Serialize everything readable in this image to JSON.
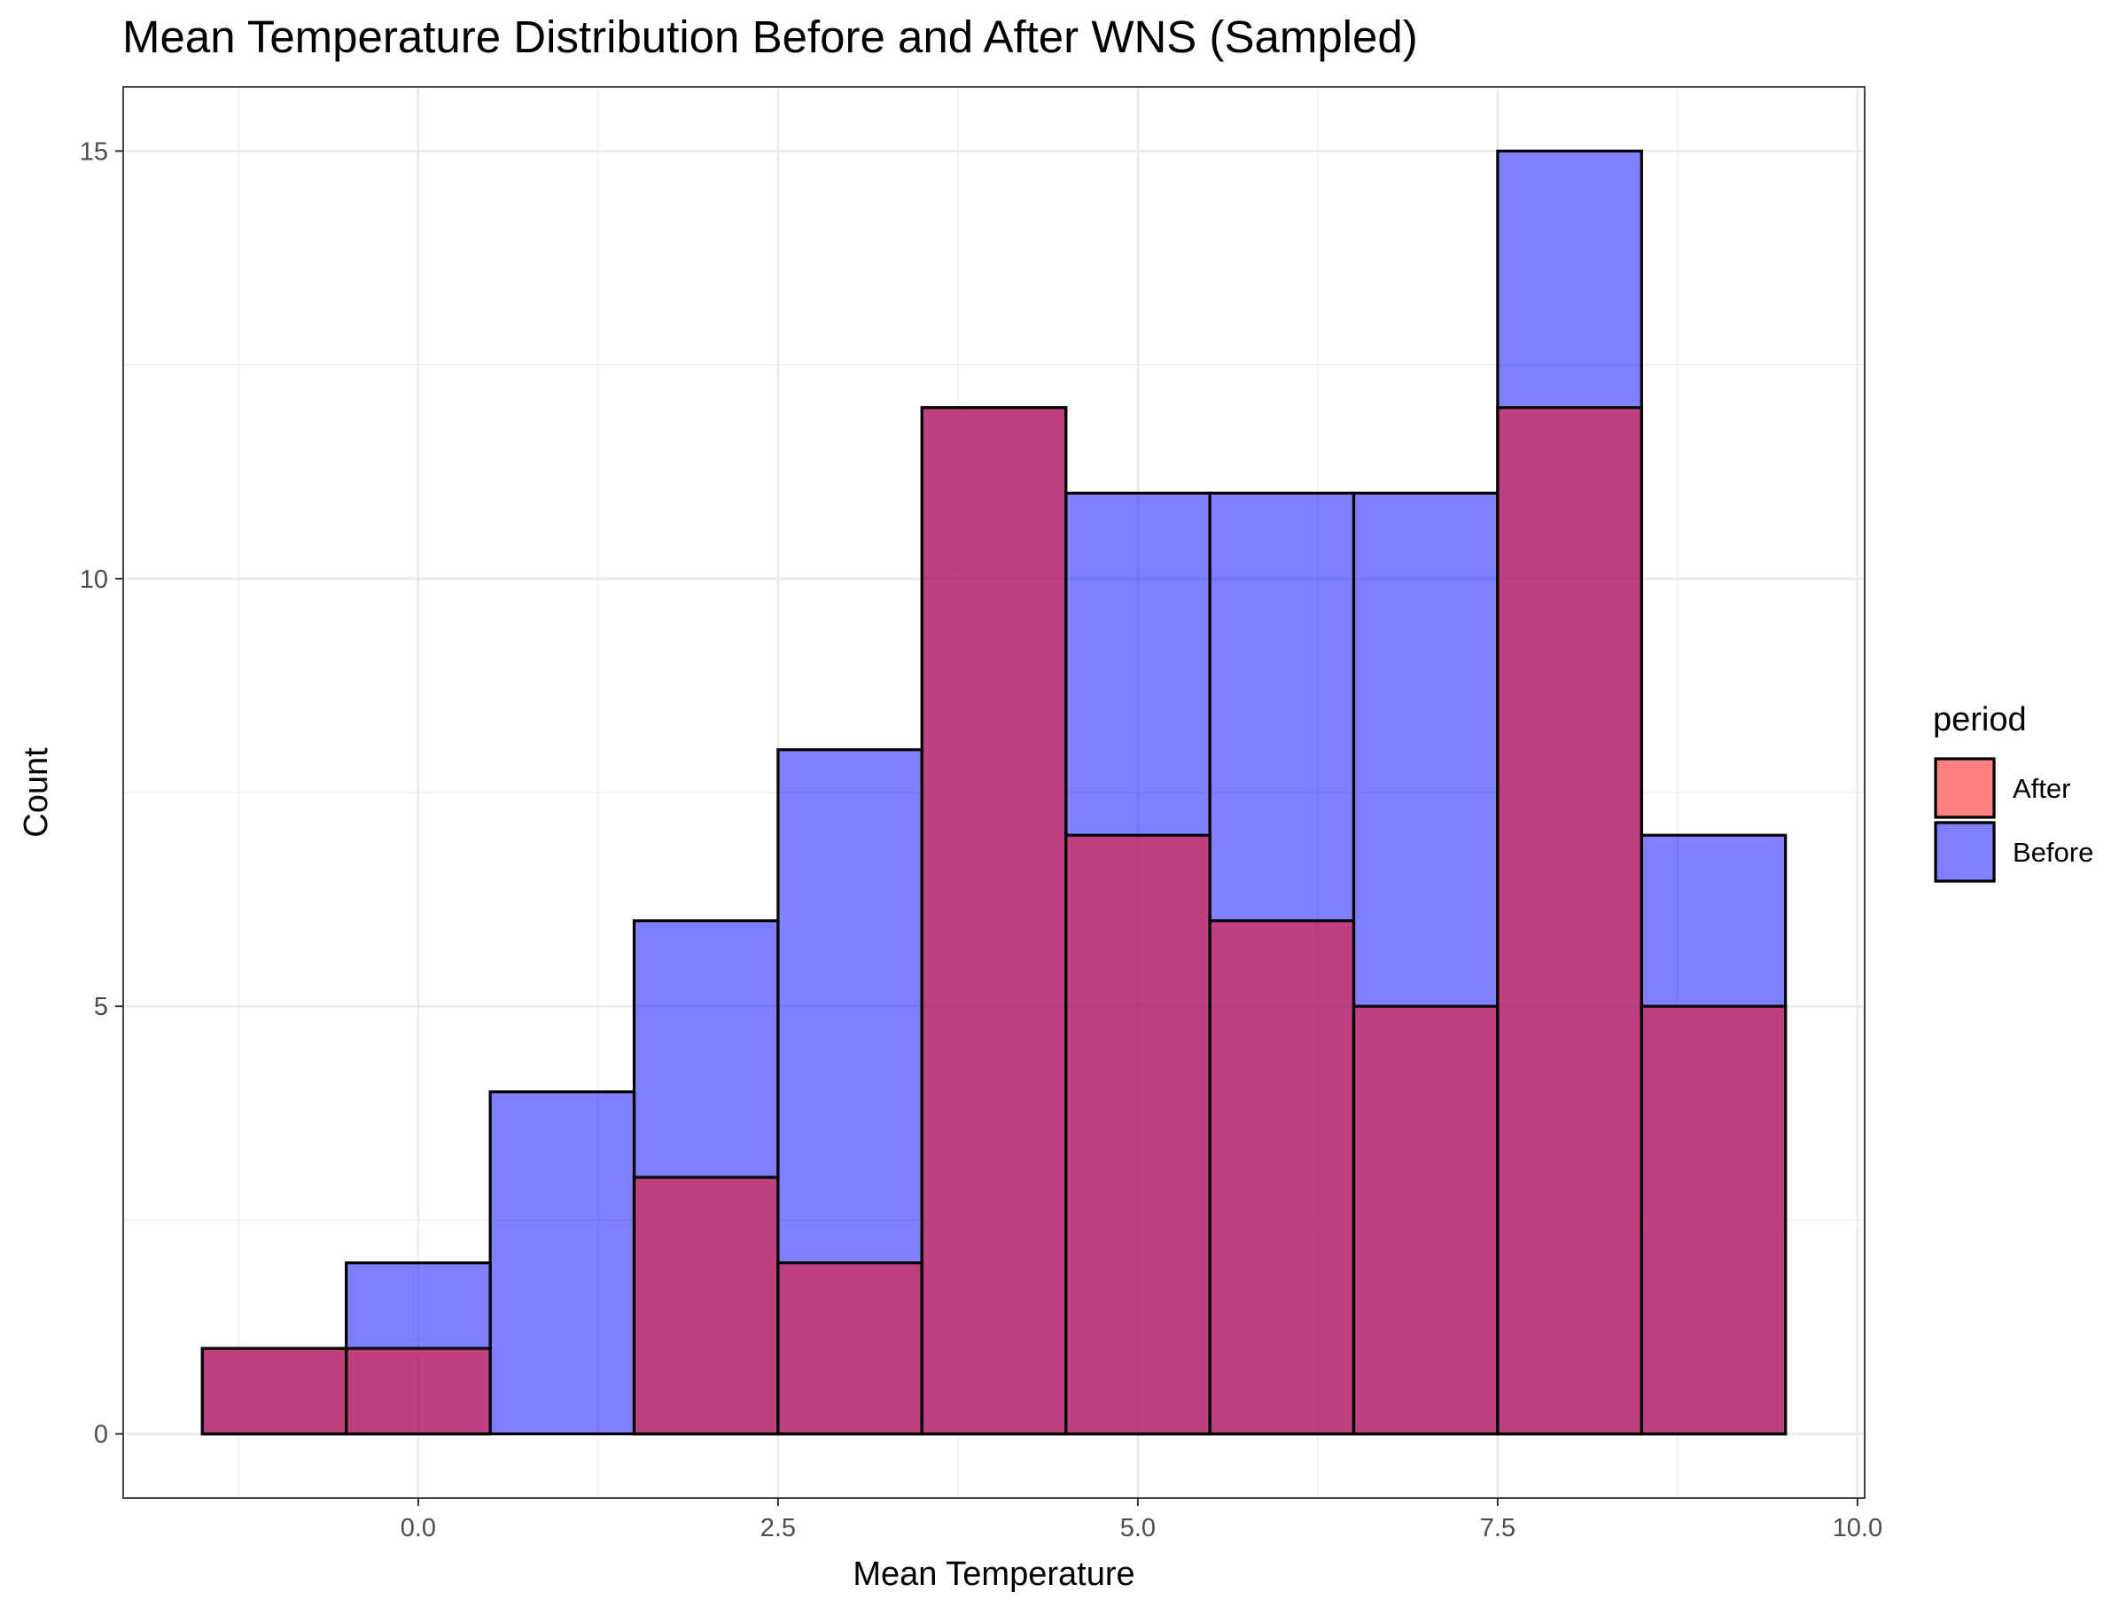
{
  "chart_data": {
    "type": "bar",
    "chart_kind": "histogram-overlay",
    "title": "Mean Temperature Distribution Before and After WNS (Sampled)",
    "xlabel": "Mean Temperature",
    "ylabel": "Count",
    "xlim": [
      -2.05,
      10.05
    ],
    "ylim": [
      -0.75,
      15.75
    ],
    "x_ticks": [
      0.0,
      2.5,
      5.0,
      7.5,
      10.0
    ],
    "x_tick_labels": [
      "0.0",
      "2.5",
      "5.0",
      "7.5",
      "10.0"
    ],
    "y_ticks": [
      0,
      5,
      10,
      15
    ],
    "y_tick_labels": [
      "0",
      "5",
      "10",
      "15"
    ],
    "grid": true,
    "bin_width": 1,
    "bin_centers": [
      -1,
      0,
      1,
      2,
      3,
      4,
      5,
      6,
      7,
      8,
      9
    ],
    "series": [
      {
        "name": "Before",
        "color": "#0000ff",
        "opacity": 0.5,
        "values": [
          1,
          2,
          4,
          6,
          8,
          12,
          11,
          11,
          11,
          15,
          7
        ]
      },
      {
        "name": "After",
        "color": "#ff0000",
        "opacity": 0.5,
        "values": [
          1,
          1,
          0,
          3,
          2,
          12,
          7,
          6,
          5,
          12,
          5
        ]
      }
    ],
    "legend": {
      "title": "period",
      "position": "right",
      "entries": [
        {
          "label": "After",
          "color": "#ff8080"
        },
        {
          "label": "Before",
          "color": "#8080ff"
        }
      ]
    }
  }
}
